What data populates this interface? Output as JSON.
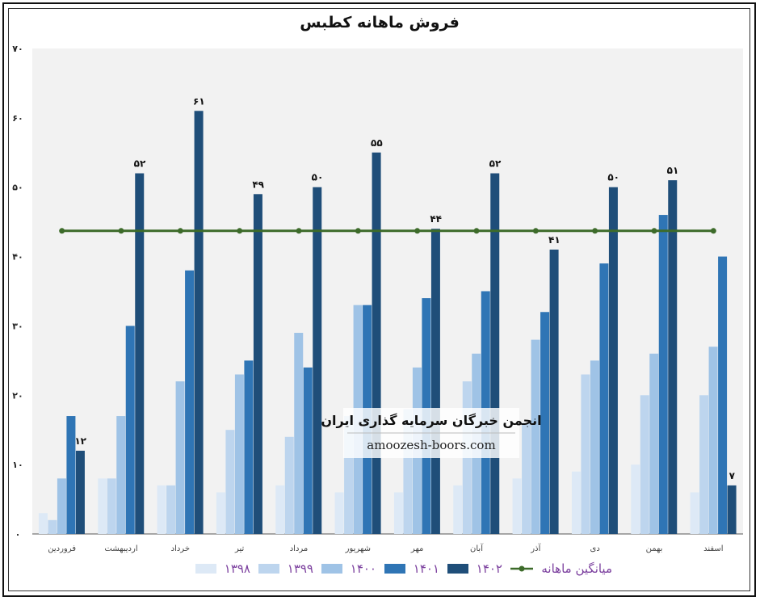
{
  "chart_data": {
    "type": "bar",
    "title": "فروش ماهانه کطبس",
    "categories": [
      "فروردین",
      "اردیبهشت",
      "خرداد",
      "تیر",
      "مرداد",
      "شهریور",
      "مهر",
      "آبان",
      "آذر",
      "دی",
      "بهمن",
      "اسفند"
    ],
    "series": [
      {
        "name": "۱۳۹۸",
        "color": "#dde9f6",
        "values": [
          3,
          8,
          7,
          6,
          7,
          6,
          6,
          7,
          8,
          9,
          10,
          6
        ]
      },
      {
        "name": "۱۳۹۹",
        "color": "#bdd5ee",
        "values": [
          2,
          8,
          7,
          15,
          14,
          17,
          18,
          22,
          16,
          23,
          20,
          20
        ]
      },
      {
        "name": "۱۴۰۰",
        "color": "#9fc3e6",
        "values": [
          8,
          17,
          22,
          23,
          29,
          33,
          24,
          26,
          28,
          25,
          26,
          27
        ]
      },
      {
        "name": "۱۴۰۱",
        "color": "#2f75b5",
        "values": [
          17,
          30,
          38,
          25,
          24,
          33,
          34,
          35,
          32,
          39,
          46,
          40
        ]
      },
      {
        "name": "۱۴۰۲",
        "color": "#1f4e79",
        "values": [
          12,
          52,
          61,
          49,
          50,
          55,
          44,
          52,
          41,
          50,
          51,
          7
        ],
        "data_labels": [
          "۱۲",
          "۵۲",
          "۶۱",
          "۴۹",
          "۵۰",
          "۵۵",
          "۴۴",
          "۵۲",
          "۴۱",
          "۵۰",
          "۵۱",
          "۷"
        ]
      }
    ],
    "average_line": {
      "name": "میانگین ماهانه",
      "color": "#3d6b2a",
      "value": 43.7
    },
    "ylim": [
      0,
      70
    ],
    "yticks": [
      "۰",
      "۱۰",
      "۲۰",
      "۳۰",
      "۴۰",
      "۵۰",
      "۶۰",
      "۷۰"
    ],
    "xlabel": "",
    "ylabel": "",
    "legend_position": "bottom",
    "grid": false
  },
  "watermark": {
    "title": "انجمن خبرگان سرمایه گذاری ایران",
    "site": "amoozesh-boors.com"
  }
}
